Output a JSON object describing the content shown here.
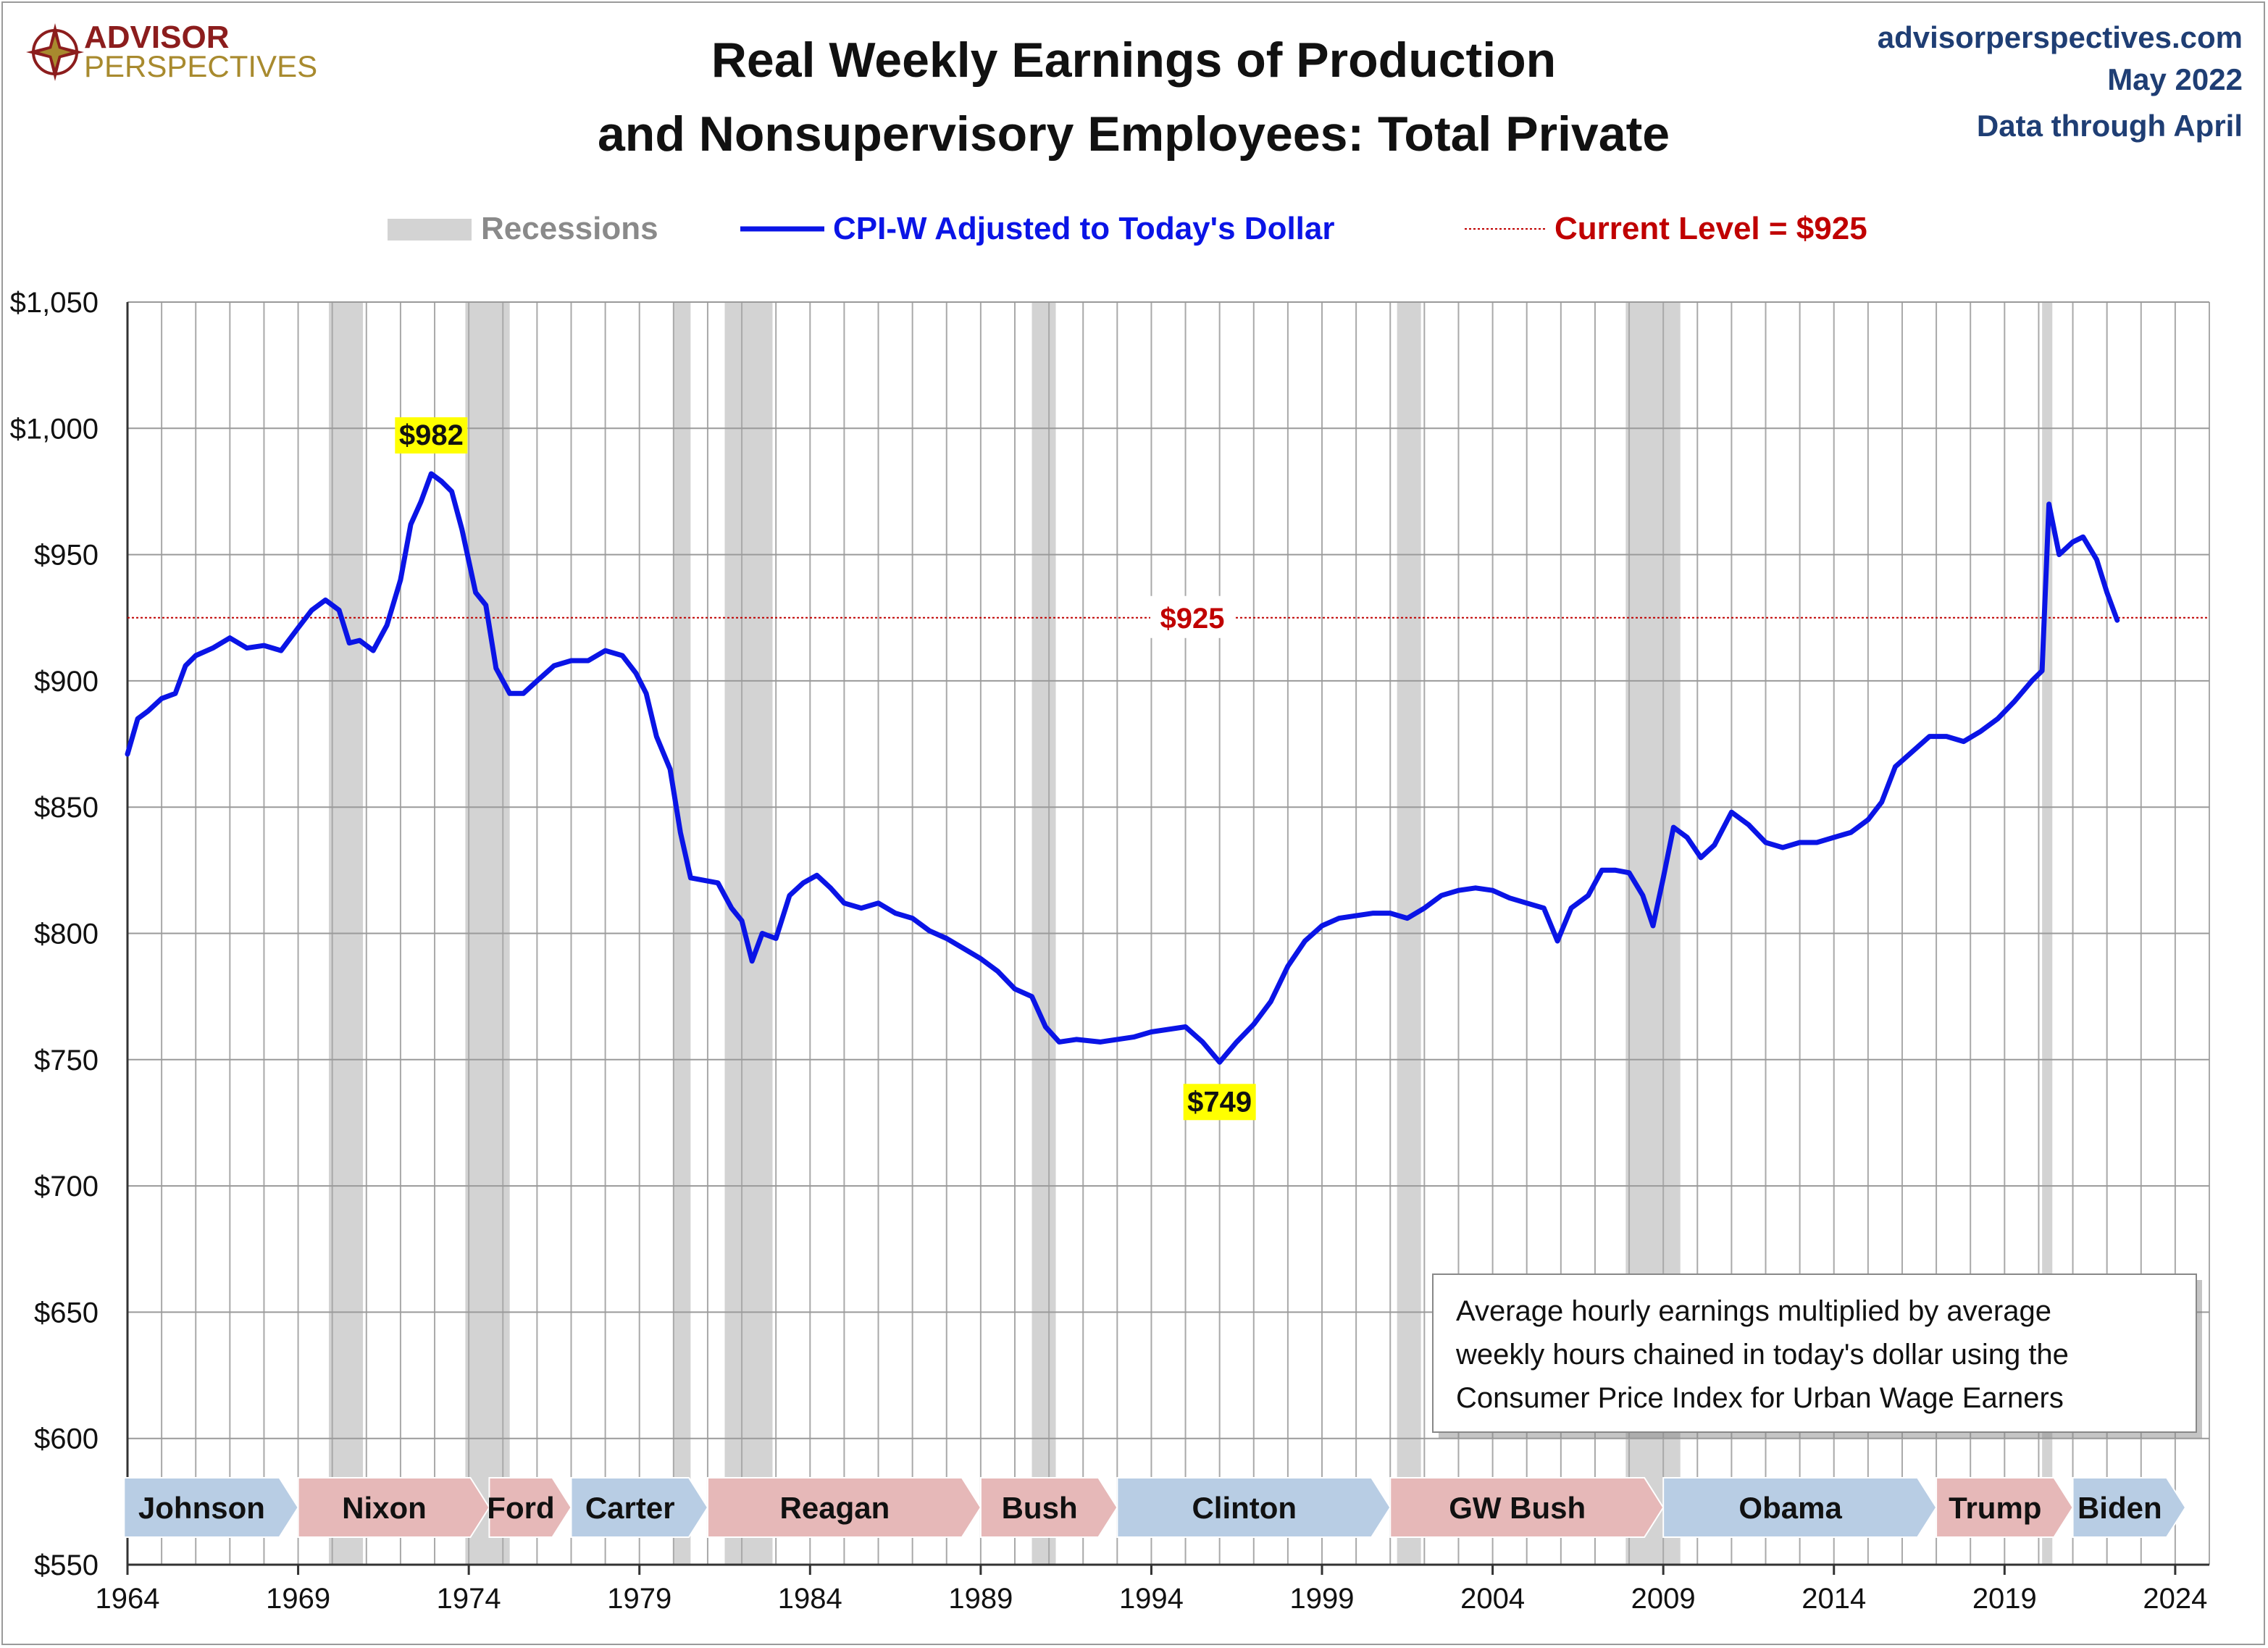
{
  "header": {
    "logo_line1": "ADVISOR",
    "logo_line2": "PERSPECTIVES",
    "title_line1": "Real Weekly Earnings of Production",
    "title_line2": "and Nonsupervisory Employees: Total Private",
    "source": "advisorperspectives.com",
    "date": "May 2022",
    "data_through": "Data through April"
  },
  "colors": {
    "series": "#0a14e6",
    "current_line": "#c00000",
    "recession": "#d3d3d3",
    "dem_party": "#b8cde4",
    "rep_party": "#e6b8b8",
    "label_highlight": "#ffff00"
  },
  "chart_data": {
    "type": "line",
    "title": "Real Weekly Earnings of Production and Nonsupervisory Employees: Total Private",
    "xlim": [
      1964,
      2025
    ],
    "ylim": [
      550,
      1050
    ],
    "x_ticks": [
      1964,
      1969,
      1974,
      1979,
      1984,
      1989,
      1994,
      1999,
      2004,
      2009,
      2014,
      2019,
      2024
    ],
    "y_ticks": [
      550,
      600,
      650,
      700,
      750,
      800,
      850,
      900,
      950,
      1000,
      1050
    ],
    "y_tick_labels": [
      "$550",
      "$600",
      "$650",
      "$700",
      "$750",
      "$800",
      "$850",
      "$900",
      "$950",
      "$1,000",
      "$1,050"
    ],
    "grid": true,
    "legend": {
      "placement": "top-center",
      "recessions": "Recessions",
      "series": "CPI-W Adjusted to Today's Dollar",
      "current": "Current Level = $925"
    },
    "series": [
      {
        "name": "CPI-W Adjusted to Today's Dollar",
        "points": [
          [
            1964.0,
            871
          ],
          [
            1964.3,
            885
          ],
          [
            1964.6,
            888
          ],
          [
            1965.0,
            893
          ],
          [
            1965.4,
            895
          ],
          [
            1965.7,
            906
          ],
          [
            1966.0,
            910
          ],
          [
            1966.5,
            913
          ],
          [
            1967.0,
            917
          ],
          [
            1967.5,
            913
          ],
          [
            1968.0,
            914
          ],
          [
            1968.5,
            912
          ],
          [
            1969.0,
            921
          ],
          [
            1969.4,
            928
          ],
          [
            1969.8,
            932
          ],
          [
            1970.2,
            928
          ],
          [
            1970.5,
            915
          ],
          [
            1970.8,
            916
          ],
          [
            1971.2,
            912
          ],
          [
            1971.6,
            922
          ],
          [
            1972.0,
            940
          ],
          [
            1972.3,
            962
          ],
          [
            1972.6,
            971
          ],
          [
            1972.9,
            982
          ],
          [
            1973.2,
            979
          ],
          [
            1973.5,
            975
          ],
          [
            1973.8,
            960
          ],
          [
            1974.2,
            935
          ],
          [
            1974.5,
            930
          ],
          [
            1974.8,
            905
          ],
          [
            1975.2,
            895
          ],
          [
            1975.6,
            895
          ],
          [
            1976.0,
            900
          ],
          [
            1976.5,
            906
          ],
          [
            1977.0,
            908
          ],
          [
            1977.5,
            908
          ],
          [
            1978.0,
            912
          ],
          [
            1978.5,
            910
          ],
          [
            1978.9,
            903
          ],
          [
            1979.2,
            895
          ],
          [
            1979.5,
            878
          ],
          [
            1979.9,
            865
          ],
          [
            1980.2,
            840
          ],
          [
            1980.5,
            822
          ],
          [
            1980.9,
            821
          ],
          [
            1981.3,
            820
          ],
          [
            1981.7,
            810
          ],
          [
            1982.0,
            805
          ],
          [
            1982.3,
            789
          ],
          [
            1982.6,
            800
          ],
          [
            1983.0,
            798
          ],
          [
            1983.4,
            815
          ],
          [
            1983.8,
            820
          ],
          [
            1984.2,
            823
          ],
          [
            1984.6,
            818
          ],
          [
            1985.0,
            812
          ],
          [
            1985.5,
            810
          ],
          [
            1986.0,
            812
          ],
          [
            1986.5,
            808
          ],
          [
            1987.0,
            806
          ],
          [
            1987.5,
            801
          ],
          [
            1988.0,
            798
          ],
          [
            1988.5,
            794
          ],
          [
            1989.0,
            790
          ],
          [
            1989.5,
            785
          ],
          [
            1990.0,
            778
          ],
          [
            1990.5,
            775
          ],
          [
            1990.9,
            763
          ],
          [
            1991.3,
            757
          ],
          [
            1991.8,
            758
          ],
          [
            1992.5,
            757
          ],
          [
            1993.0,
            758
          ],
          [
            1993.5,
            759
          ],
          [
            1994.0,
            761
          ],
          [
            1994.5,
            762
          ],
          [
            1995.0,
            763
          ],
          [
            1995.5,
            757
          ],
          [
            1996.0,
            749
          ],
          [
            1996.5,
            757
          ],
          [
            1997.0,
            764
          ],
          [
            1997.5,
            773
          ],
          [
            1998.0,
            787
          ],
          [
            1998.5,
            797
          ],
          [
            1999.0,
            803
          ],
          [
            1999.5,
            806
          ],
          [
            2000.0,
            807
          ],
          [
            2000.5,
            808
          ],
          [
            2001.0,
            808
          ],
          [
            2001.5,
            806
          ],
          [
            2002.0,
            810
          ],
          [
            2002.5,
            815
          ],
          [
            2003.0,
            817
          ],
          [
            2003.5,
            818
          ],
          [
            2004.0,
            817
          ],
          [
            2004.5,
            814
          ],
          [
            2005.0,
            812
          ],
          [
            2005.5,
            810
          ],
          [
            2005.9,
            797
          ],
          [
            2006.3,
            810
          ],
          [
            2006.8,
            815
          ],
          [
            2007.2,
            825
          ],
          [
            2007.6,
            825
          ],
          [
            2008.0,
            824
          ],
          [
            2008.4,
            815
          ],
          [
            2008.7,
            803
          ],
          [
            2009.0,
            822
          ],
          [
            2009.3,
            842
          ],
          [
            2009.7,
            838
          ],
          [
            2010.1,
            830
          ],
          [
            2010.5,
            835
          ],
          [
            2011.0,
            848
          ],
          [
            2011.5,
            843
          ],
          [
            2012.0,
            836
          ],
          [
            2012.5,
            834
          ],
          [
            2013.0,
            836
          ],
          [
            2013.5,
            836
          ],
          [
            2014.0,
            838
          ],
          [
            2014.5,
            840
          ],
          [
            2015.0,
            845
          ],
          [
            2015.4,
            852
          ],
          [
            2015.8,
            866
          ],
          [
            2016.3,
            872
          ],
          [
            2016.8,
            878
          ],
          [
            2017.3,
            878
          ],
          [
            2017.8,
            876
          ],
          [
            2018.3,
            880
          ],
          [
            2018.8,
            885
          ],
          [
            2019.3,
            892
          ],
          [
            2019.8,
            900
          ],
          [
            2020.1,
            904
          ],
          [
            2020.3,
            970
          ],
          [
            2020.6,
            950
          ],
          [
            2021.0,
            955
          ],
          [
            2021.3,
            957
          ],
          [
            2021.7,
            948
          ],
          [
            2022.0,
            935
          ],
          [
            2022.3,
            924
          ]
        ]
      }
    ],
    "current_level": 925,
    "current_label": "$925",
    "annotations": [
      {
        "label": "$982",
        "x": 1972.9,
        "y": 982
      },
      {
        "label": "$749",
        "x": 1996.0,
        "y": 749
      }
    ],
    "recessions": [
      [
        1969.9,
        1970.9
      ],
      [
        1973.9,
        1975.2
      ],
      [
        1980.0,
        1980.5
      ],
      [
        1981.5,
        1982.9
      ],
      [
        1990.5,
        1991.2
      ],
      [
        2001.2,
        2001.9
      ],
      [
        2007.9,
        2009.5
      ],
      [
        2020.1,
        2020.4
      ]
    ],
    "presidents": [
      {
        "name": "Johnson",
        "start": 1963.9,
        "end": 1969.0,
        "party": "D"
      },
      {
        "name": "Nixon",
        "start": 1969.0,
        "end": 1974.6,
        "party": "R"
      },
      {
        "name": "Ford",
        "start": 1974.6,
        "end": 1977.0,
        "party": "R"
      },
      {
        "name": "Carter",
        "start": 1977.0,
        "end": 1981.0,
        "party": "D"
      },
      {
        "name": "Reagan",
        "start": 1981.0,
        "end": 1989.0,
        "party": "R"
      },
      {
        "name": "Bush",
        "start": 1989.0,
        "end": 1993.0,
        "party": "R"
      },
      {
        "name": "Clinton",
        "start": 1993.0,
        "end": 2001.0,
        "party": "D"
      },
      {
        "name": "GW Bush",
        "start": 2001.0,
        "end": 2009.0,
        "party": "R"
      },
      {
        "name": "Obama",
        "start": 2009.0,
        "end": 2017.0,
        "party": "D"
      },
      {
        "name": "Trump",
        "start": 2017.0,
        "end": 2021.0,
        "party": "R"
      },
      {
        "name": "Biden",
        "start": 2021.0,
        "end": 2024.3,
        "party": "D"
      }
    ],
    "note_lines": [
      "Average hourly earnings multiplied by average",
      "weekly hours chained in today's dollar using the",
      "Consumer Price Index for Urban Wage Earners"
    ]
  }
}
